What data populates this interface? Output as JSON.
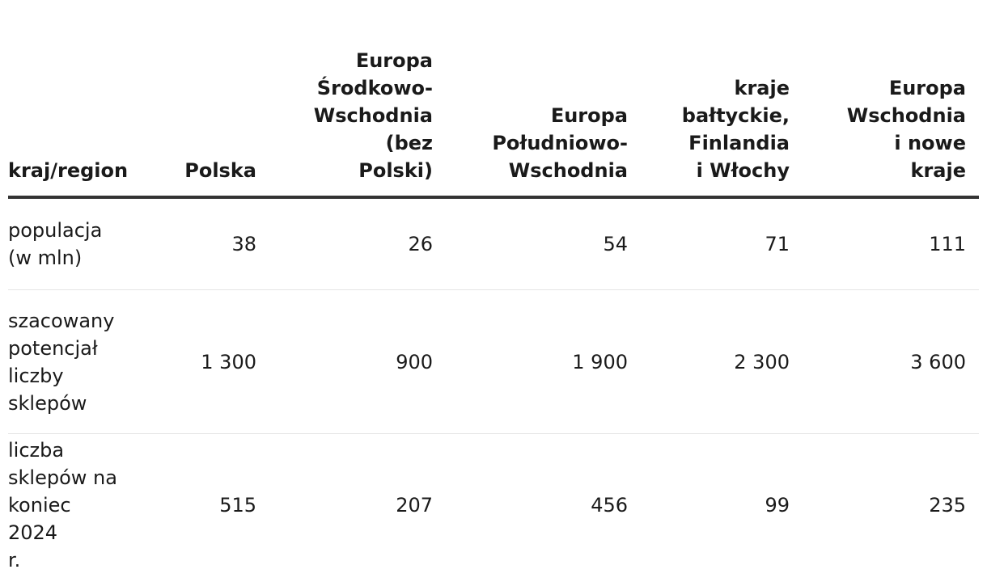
{
  "table": {
    "header": [
      [
        "kraj/region"
      ],
      [
        "Polska"
      ],
      [
        "Europa",
        "Środkowo-",
        "Wschodnia",
        "(bez",
        "Polski)"
      ],
      [
        "Europa",
        "Południowo-",
        "Wschodnia"
      ],
      [
        "kraje",
        "bałtyckie,",
        "Finlandia",
        "i Włochy"
      ],
      [
        "Europa",
        "Wschodnia",
        "i nowe",
        "kraje"
      ]
    ],
    "rows": [
      {
        "label": [
          "populacja",
          "(w mln)"
        ],
        "values": [
          "38",
          "26",
          "54",
          "71",
          "111"
        ]
      },
      {
        "label": [
          "szacowany",
          "potencjał",
          "liczby",
          "sklepów"
        ],
        "values": [
          "1 300",
          "900",
          "1 900",
          "2 300",
          "3 600"
        ]
      },
      {
        "label": [
          "liczba",
          "sklepów na",
          "koniec 2024",
          "r."
        ],
        "values": [
          "515",
          "207",
          "456",
          "99",
          "235"
        ]
      }
    ]
  }
}
